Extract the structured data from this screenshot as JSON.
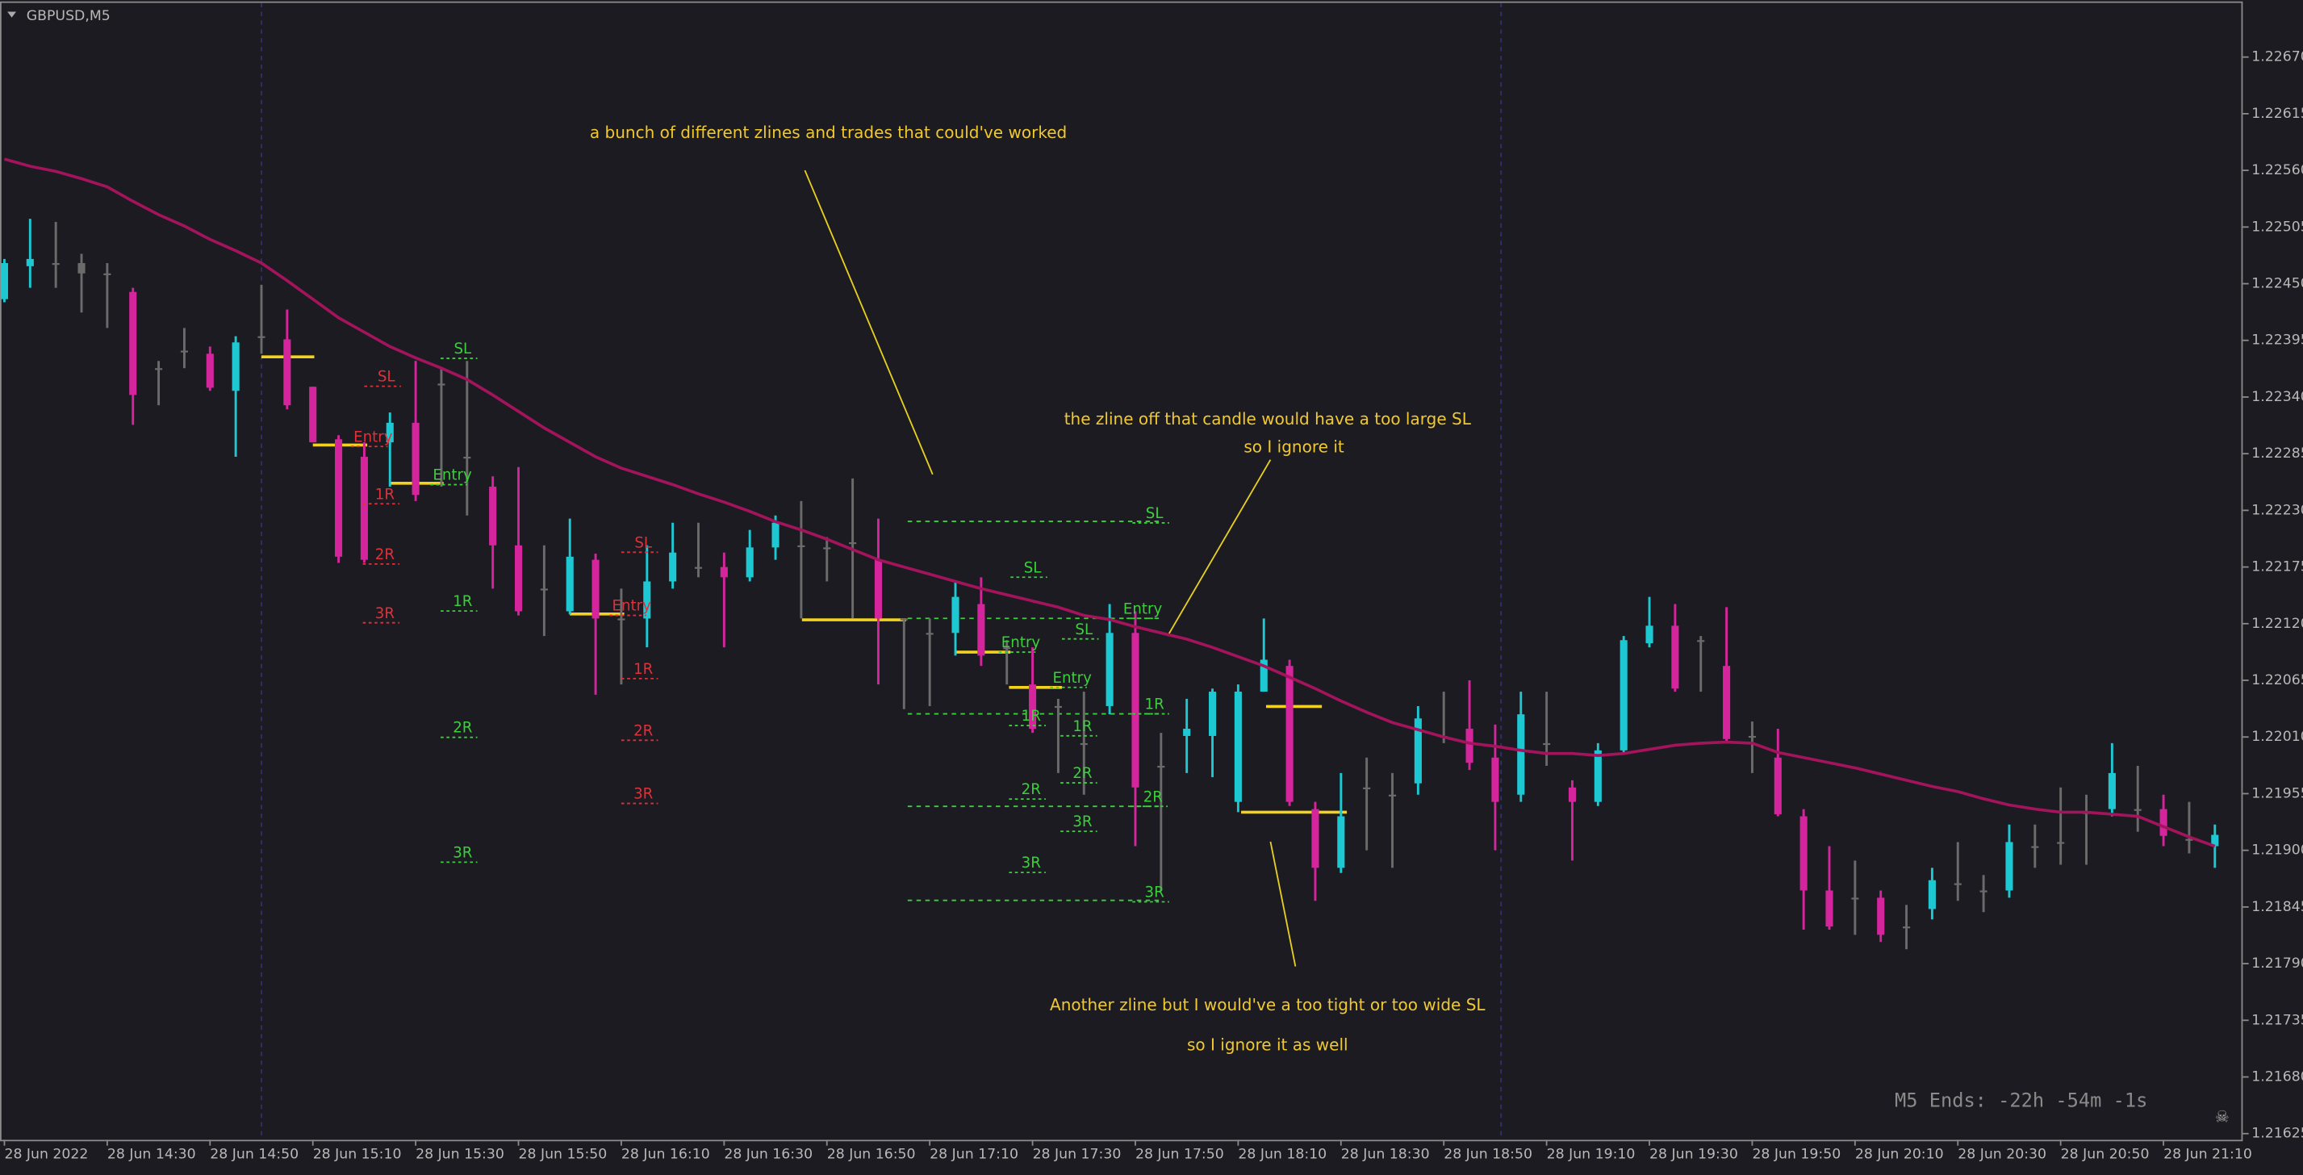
{
  "chart_data": {
    "type": "candlestick",
    "title": "GBPUSD,M5",
    "countdown": "M5 Ends: -22h -54m -1s",
    "x_labels": [
      "28 Jun 2022",
      "28 Jun 14:30",
      "28 Jun 14:50",
      "28 Jun 15:10",
      "28 Jun 15:30",
      "28 Jun 15:50",
      "28 Jun 16:10",
      "28 Jun 16:30",
      "28 Jun 16:50",
      "28 Jun 17:10",
      "28 Jun 17:30",
      "28 Jun 17:50",
      "28 Jun 18:10",
      "28 Jun 18:30",
      "28 Jun 18:50",
      "28 Jun 19:10",
      "28 Jun 19:30",
      "28 Jun 19:50",
      "28 Jun 20:10",
      "28 Jun 20:30",
      "28 Jun 20:50",
      "28 Jun 21:10"
    ],
    "open": [
      1.22435,
      1.22467,
      1.2247,
      1.2247,
      1.2246,
      1.22442,
      1.22368,
      1.22385,
      1.22382,
      1.22346,
      1.22399,
      1.22396,
      1.2235,
      1.22299,
      1.22282,
      1.22296,
      1.22315,
      1.22353,
      1.22282,
      1.22253,
      1.22196,
      1.22154,
      1.22132,
      1.22182,
      1.22125,
      1.22125,
      1.22161,
      1.22175,
      1.22175,
      1.22165,
      1.22194,
      1.22196,
      1.22194,
      1.22199,
      1.22182,
      1.22125,
      1.22111,
      1.22111,
      1.22139,
      1.22097,
      1.22061,
      1.2204,
      1.22004,
      1.2204,
      1.22111,
      1.21982,
      1.22011,
      1.22011,
      1.21947,
      1.22054,
      1.22079,
      1.2194,
      1.21883,
      1.21961,
      1.21954,
      1.21965,
      1.22011,
      1.22018,
      1.2199,
      1.21954,
      1.22004,
      1.21961,
      1.21947,
      1.21997,
      1.22101,
      1.22118,
      1.22104,
      1.22079,
      1.22011,
      1.2199,
      1.21933,
      1.21861,
      1.21854,
      1.21854,
      1.21826,
      1.21843,
      1.21868,
      1.21861,
      1.21861,
      1.21904,
      1.21908,
      1.21937,
      1.2194,
      1.2194,
      1.2194,
      1.21911,
      1.21904
    ],
    "high": [
      1.22474,
      1.22513,
      1.2251,
      1.22479,
      1.2247,
      1.22446,
      1.22375,
      1.22407,
      1.22389,
      1.22399,
      1.22449,
      1.22425,
      1.2235,
      1.22303,
      1.22296,
      1.22325,
      1.22375,
      1.22368,
      1.22375,
      1.22263,
      1.22272,
      1.22196,
      1.22222,
      1.22188,
      1.22154,
      1.22196,
      1.22218,
      1.22218,
      1.22189,
      1.22211,
      1.22225,
      1.22239,
      1.22204,
      1.22261,
      1.22222,
      1.22125,
      1.22125,
      1.22161,
      1.22165,
      1.22104,
      1.22097,
      1.22047,
      1.22054,
      1.22139,
      1.22132,
      1.22014,
      1.22047,
      1.22057,
      1.22061,
      1.22125,
      1.22085,
      1.21947,
      1.21975,
      1.2199,
      1.21975,
      1.2204,
      1.22054,
      1.22065,
      1.22022,
      1.22054,
      1.22054,
      1.21968,
      1.22004,
      1.22108,
      1.22146,
      1.22139,
      1.22108,
      1.22136,
      1.22025,
      1.22018,
      1.2194,
      1.21904,
      1.2189,
      1.21861,
      1.21847,
      1.21883,
      1.21908,
      1.21876,
      1.21925,
      1.21925,
      1.21961,
      1.21954,
      1.22004,
      1.21982,
      1.21954,
      1.21947,
      1.21925
    ],
    "low": [
      1.22432,
      1.22446,
      1.22446,
      1.22422,
      1.22407,
      1.22313,
      1.22332,
      1.22368,
      1.22346,
      1.22282,
      1.22382,
      1.22328,
      1.22296,
      1.22179,
      1.22179,
      1.22253,
      1.22239,
      1.22253,
      1.22225,
      1.22154,
      1.22128,
      1.22108,
      1.22129,
      1.22051,
      1.22061,
      1.22097,
      1.22154,
      1.22165,
      1.22097,
      1.22161,
      1.22182,
      1.22125,
      1.22161,
      1.22125,
      1.22061,
      1.22037,
      1.2204,
      1.22089,
      1.22079,
      1.22061,
      1.22014,
      1.21975,
      1.21954,
      1.22032,
      1.21904,
      1.21861,
      1.21975,
      1.21971,
      1.21937,
      1.22054,
      1.21943,
      1.21851,
      1.21878,
      1.219,
      1.21883,
      1.21954,
      1.22004,
      1.21978,
      1.219,
      1.21947,
      1.21982,
      1.2189,
      1.21943,
      1.21994,
      1.22097,
      1.22054,
      1.22054,
      1.22004,
      1.21975,
      1.21933,
      1.21823,
      1.21823,
      1.21818,
      1.21811,
      1.21804,
      1.21833,
      1.21851,
      1.2184,
      1.21854,
      1.21883,
      1.21886,
      1.21886,
      1.21933,
      1.21918,
      1.21904,
      1.21897,
      1.21883
    ],
    "close": [
      1.2247,
      1.22474,
      1.2247,
      1.2246,
      1.2246,
      1.22342,
      1.22368,
      1.22385,
      1.22349,
      1.22393,
      1.22399,
      1.22332,
      1.22296,
      1.22185,
      1.22182,
      1.22315,
      1.22245,
      1.22353,
      1.22282,
      1.22196,
      1.22132,
      1.22154,
      1.22185,
      1.22125,
      1.22125,
      1.22161,
      1.22189,
      1.22175,
      1.22165,
      1.22194,
      1.22218,
      1.22196,
      1.22194,
      1.22199,
      1.22125,
      1.22125,
      1.22111,
      1.22146,
      1.22089,
      1.22097,
      1.22018,
      1.2204,
      1.22004,
      1.22111,
      1.21961,
      1.21982,
      1.22018,
      1.22054,
      1.22054,
      1.22085,
      1.21947,
      1.21883,
      1.21933,
      1.21961,
      1.21954,
      1.22028,
      1.22011,
      1.21985,
      1.21947,
      1.22032,
      1.22004,
      1.21947,
      1.21997,
      1.22104,
      1.22118,
      1.22057,
      1.22104,
      1.22008,
      1.22011,
      1.21935,
      1.21861,
      1.21826,
      1.21854,
      1.21818,
      1.21826,
      1.21871,
      1.21868,
      1.21861,
      1.21908,
      1.21904,
      1.21908,
      1.21937,
      1.21975,
      1.2194,
      1.21914,
      1.21911,
      1.21915
    ],
    "colors": [
      "#1ec8d2",
      "#1ec8d2",
      "#6b6b6b",
      "#6b6b6b",
      "#6b6b6b",
      "#d4259c",
      "#6b6b6b",
      "#6b6b6b",
      "#d4259c",
      "#1ec8d2",
      "#6b6b6b",
      "#d4259c",
      "#d4259c",
      "#d4259c",
      "#d4259c",
      "#1ec8d2",
      "#d4259c",
      "#6b6b6b",
      "#6b6b6b",
      "#d4259c",
      "#d4259c",
      "#6b6b6b",
      "#1ec8d2",
      "#d4259c",
      "#6b6b6b",
      "#1ec8d2",
      "#1ec8d2",
      "#6b6b6b",
      "#d4259c",
      "#1ec8d2",
      "#1ec8d2",
      "#6b6b6b",
      "#6b6b6b",
      "#6b6b6b",
      "#d4259c",
      "#6b6b6b",
      "#6b6b6b",
      "#1ec8d2",
      "#d4259c",
      "#6b6b6b",
      "#d4259c",
      "#6b6b6b",
      "#6b6b6b",
      "#1ec8d2",
      "#d4259c",
      "#6b6b6b",
      "#1ec8d2",
      "#1ec8d2",
      "#1ec8d2",
      "#1ec8d2",
      "#d4259c",
      "#d4259c",
      "#1ec8d2",
      "#6b6b6b",
      "#6b6b6b",
      "#1ec8d2",
      "#6b6b6b",
      "#d4259c",
      "#d4259c",
      "#1ec8d2",
      "#6b6b6b",
      "#d4259c",
      "#1ec8d2",
      "#1ec8d2",
      "#1ec8d2",
      "#d4259c",
      "#6b6b6b",
      "#d4259c",
      "#6b6b6b",
      "#d4259c",
      "#d4259c",
      "#d4259c",
      "#6b6b6b",
      "#d4259c",
      "#6b6b6b",
      "#1ec8d2",
      "#6b6b6b",
      "#6b6b6b",
      "#1ec8d2",
      "#6b6b6b",
      "#6b6b6b",
      "#6b6b6b",
      "#1ec8d2",
      "#6b6b6b",
      "#d4259c",
      "#6b6b6b",
      "#1ec8d2"
    ],
    "moving_average": {
      "color": "#a3145c",
      "values": [
        1.22571,
        1.22564,
        1.22559,
        1.22552,
        1.22544,
        1.2253,
        1.22517,
        1.22506,
        1.22493,
        1.22482,
        1.2247,
        1.22453,
        1.22435,
        1.22417,
        1.22403,
        1.22389,
        1.22378,
        1.22368,
        1.22357,
        1.22342,
        1.22326,
        1.2231,
        1.22296,
        1.22282,
        1.22271,
        1.22263,
        1.22255,
        1.22246,
        1.22238,
        1.22229,
        1.22219,
        1.22211,
        1.22202,
        1.22192,
        1.22182,
        1.22175,
        1.22168,
        1.22161,
        1.22154,
        1.22148,
        1.22142,
        1.22136,
        1.22128,
        1.22124,
        1.22117,
        1.22111,
        1.22105,
        1.22097,
        1.22088,
        1.22079,
        1.22068,
        1.22057,
        1.22045,
        1.22034,
        1.22024,
        1.22017,
        1.2201,
        1.22004,
        1.22001,
        1.21997,
        1.21994,
        1.21994,
        1.21992,
        1.21994,
        1.21998,
        1.22002,
        1.22004,
        1.22005,
        1.22004,
        1.21995,
        1.2199,
        1.21985,
        1.2198,
        1.21974,
        1.21968,
        1.21962,
        1.21957,
        1.2195,
        1.21944,
        1.2194,
        1.21937,
        1.21937,
        1.21935,
        1.21933,
        1.21923,
        1.21913,
        1.21904
      ]
    },
    "ylim": [
      1.21619,
      1.22724
    ],
    "yticks": [
      1.21625,
      {
        "value": 1.2168,
        "label": "1.21680"
      },
      1.21735,
      {
        "value": 1.2179,
        "label": "1.21790"
      },
      1.21845,
      {
        "value": 1.219,
        "label": "1.21900"
      },
      1.21955,
      {
        "value": 1.2201,
        "label": "1.22010"
      },
      1.22065,
      {
        "value": 1.2212,
        "label": "1.22120"
      },
      1.22175,
      {
        "value": 1.2223,
        "label": "1.22230"
      },
      1.22285,
      {
        "value": 1.2234,
        "label": "1.22340"
      },
      1.22395,
      {
        "value": 1.2245,
        "label": "1.22450"
      },
      1.22505,
      {
        "value": 1.2256,
        "label": "1.22560"
      },
      1.22615,
      {
        "value": 1.2267,
        "label": "1.22670"
      }
    ],
    "annotations": [
      "a bunch of different zlines and trades that could've worked",
      "the zline off that candle would have a too large SL",
      "so I ignore it",
      "Another zline but I would've a too tight or too wide SL",
      "so I ignore it as well"
    ],
    "trade_labels": [
      "SL",
      "Entry",
      "1R",
      "2R",
      "3R",
      "SL",
      "Entry",
      "1R",
      "2R",
      "3R",
      "SL",
      "Entry",
      "1R",
      "2R",
      "3R",
      "SL",
      "Entry",
      "1R",
      "2R",
      "3R",
      "SL",
      "Entry",
      "1R",
      "2R",
      "3R",
      "SL",
      "Entry",
      "1R",
      "2R",
      "3R"
    ]
  }
}
